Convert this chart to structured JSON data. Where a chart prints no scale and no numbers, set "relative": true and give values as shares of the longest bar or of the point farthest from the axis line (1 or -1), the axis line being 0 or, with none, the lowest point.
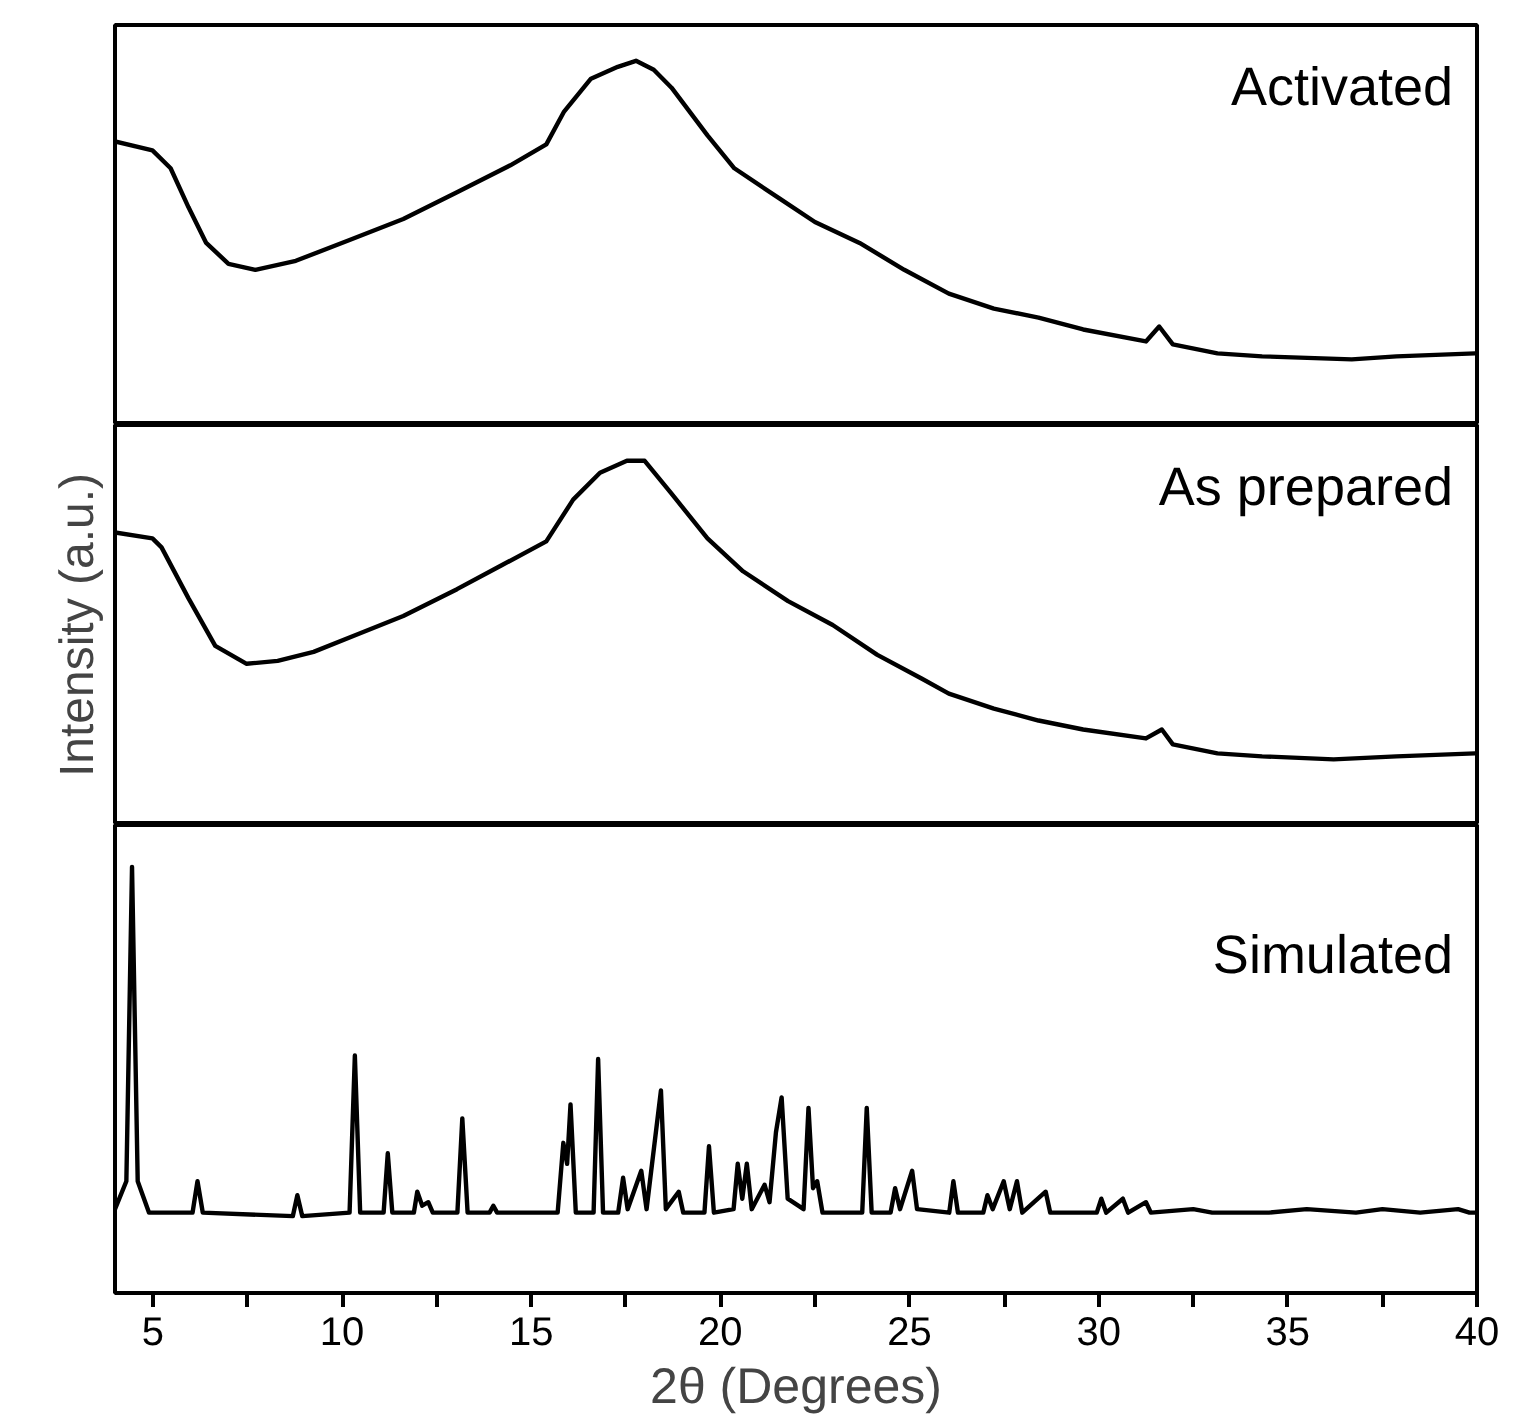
{
  "chart_data": [
    {
      "type": "line",
      "relative": true,
      "xlim": [
        4,
        40
      ],
      "tick_labels": false,
      "line_style": "solid",
      "marker": "none",
      "grid": false,
      "annotations": [
        "Activated"
      ],
      "series": [
        {
          "color": "#000000",
          "x": [
            4.0,
            4.99,
            5.47,
            5.94,
            6.41,
            7.0,
            7.71,
            8.78,
            10.2,
            11.62,
            13.04,
            14.45,
            15.4,
            15.87,
            16.58,
            17.29,
            17.77,
            18.24,
            18.71,
            19.66,
            20.37,
            21.55,
            22.5,
            23.68,
            24.86,
            26.04,
            27.23,
            28.41,
            29.59,
            31.25,
            31.6,
            31.96,
            33.14,
            34.32,
            36.69,
            37.87,
            39.95
          ],
          "values": [
            0.73,
            0.7,
            0.64,
            0.51,
            0.39,
            0.32,
            0.3,
            0.33,
            0.4,
            0.47,
            0.56,
            0.65,
            0.72,
            0.83,
            0.94,
            0.98,
            1.0,
            0.97,
            0.91,
            0.75,
            0.64,
            0.54,
            0.46,
            0.39,
            0.3,
            0.22,
            0.17,
            0.14,
            0.1,
            0.06,
            0.11,
            0.05,
            0.02,
            0.01,
            0,
            0.01,
            0.02
          ]
        }
      ]
    },
    {
      "type": "line",
      "relative": true,
      "xlim": [
        4,
        40
      ],
      "tick_labels": false,
      "line_style": "solid",
      "marker": "none",
      "grid": false,
      "ylabel": "Intensity (a.u.)",
      "annotations": [
        "As prepared"
      ],
      "series": [
        {
          "color": "#000000",
          "x": [
            4.0,
            4.99,
            5.23,
            5.94,
            6.65,
            7.48,
            8.3,
            9.25,
            10.43,
            11.62,
            13.04,
            14.22,
            15.4,
            16.11,
            16.82,
            17.53,
            18.0,
            18.71,
            19.66,
            20.6,
            21.79,
            22.97,
            24.15,
            25.33,
            26.04,
            27.23,
            28.41,
            29.59,
            31.25,
            31.67,
            31.96,
            33.14,
            34.32,
            36.21,
            37.87,
            39.95
          ],
          "values": [
            0.76,
            0.74,
            0.71,
            0.54,
            0.38,
            0.32,
            0.33,
            0.36,
            0.42,
            0.48,
            0.57,
            0.65,
            0.73,
            0.87,
            0.96,
            1.0,
            1.0,
            0.89,
            0.74,
            0.63,
            0.53,
            0.45,
            0.35,
            0.27,
            0.22,
            0.17,
            0.13,
            0.1,
            0.07,
            0.1,
            0.05,
            0.02,
            0.01,
            0,
            0.01,
            0.02
          ]
        }
      ]
    },
    {
      "type": "line",
      "relative": true,
      "xlim": [
        4,
        40
      ],
      "tick_labels": "x",
      "line_style": "solid",
      "marker": "none",
      "grid": false,
      "xlabel": "2θ (Degrees)",
      "annotations": [
        "Simulated"
      ],
      "xticks": [
        5,
        10,
        15,
        20,
        25,
        30,
        35,
        40
      ],
      "series": [
        {
          "color": "#000000",
          "x": [
            4.0,
            4.3,
            4.45,
            4.6,
            4.9,
            6.05,
            6.18,
            6.32,
            8.7,
            8.82,
            8.95,
            10.2,
            10.34,
            10.48,
            11.1,
            11.21,
            11.33,
            11.9,
            11.99,
            12.12,
            12.28,
            12.4,
            13.05,
            13.18,
            13.32,
            13.9,
            14.0,
            14.1,
            15.7,
            15.85,
            15.95,
            16.04,
            16.18,
            16.65,
            16.77,
            16.9,
            17.3,
            17.43,
            17.55,
            17.91,
            18.05,
            18.43,
            18.56,
            18.9,
            19.02,
            19.58,
            19.7,
            19.83,
            20.35,
            20.46,
            20.58,
            20.7,
            20.83,
            21.17,
            21.3,
            21.47,
            21.62,
            21.78,
            22.2,
            22.33,
            22.45,
            22.56,
            22.7,
            23.75,
            23.87,
            24.0,
            24.5,
            24.62,
            24.75,
            25.07,
            25.2,
            26.05,
            26.16,
            26.28,
            26.95,
            27.06,
            27.2,
            27.49,
            27.65,
            27.84,
            27.98,
            28.6,
            28.72,
            29.95,
            30.07,
            30.2,
            30.64,
            30.78,
            31.25,
            31.38,
            32.5,
            33,
            34.5,
            35.5,
            36.8,
            37.5,
            38.5,
            39.5,
            39.8,
            40
          ],
          "values": [
            0.02,
            0.1,
            1.0,
            0.1,
            0.01,
            0.01,
            0.1,
            0.01,
            0,
            0.06,
            0,
            0.01,
            0.46,
            0.01,
            0.01,
            0.18,
            0.01,
            0.01,
            0.07,
            0.03,
            0.04,
            0.01,
            0.01,
            0.28,
            0.01,
            0.01,
            0.03,
            0.01,
            0.01,
            0.21,
            0.15,
            0.32,
            0.01,
            0.01,
            0.45,
            0.01,
            0.01,
            0.11,
            0.02,
            0.13,
            0.02,
            0.36,
            0.02,
            0.07,
            0.01,
            0.01,
            0.2,
            0.01,
            0.02,
            0.15,
            0.05,
            0.15,
            0.02,
            0.09,
            0.04,
            0.24,
            0.34,
            0.05,
            0.02,
            0.31,
            0.08,
            0.1,
            0.01,
            0.01,
            0.31,
            0.01,
            0.01,
            0.08,
            0.02,
            0.13,
            0.02,
            0.01,
            0.1,
            0.01,
            0.01,
            0.06,
            0.02,
            0.1,
            0.02,
            0.1,
            0.01,
            0.07,
            0.01,
            0.01,
            0.05,
            0.01,
            0.05,
            0.01,
            0.04,
            0.01,
            0.02,
            0.01,
            0.01,
            0.02,
            0.01,
            0.02,
            0.01,
            0.02,
            0.01,
            0.01
          ]
        }
      ]
    }
  ]
}
